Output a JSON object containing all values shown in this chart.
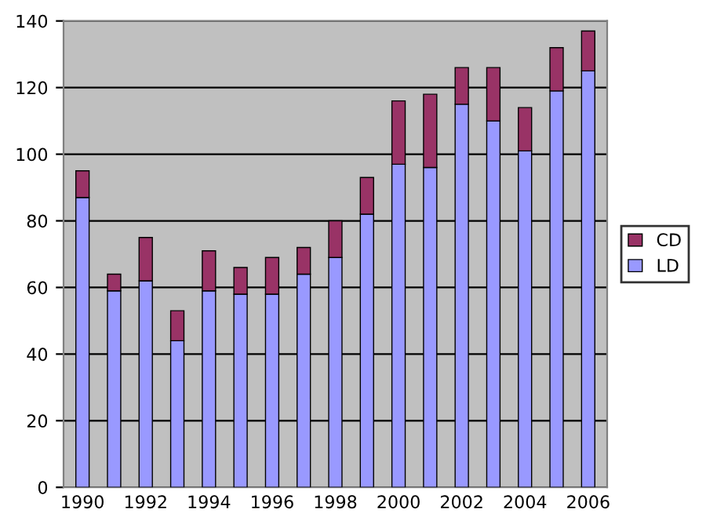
{
  "chart_data": {
    "type": "bar",
    "stacked": true,
    "categories": [
      "1990",
      null,
      "1992",
      null,
      "1994",
      null,
      "1996",
      null,
      "1998",
      null,
      "2000",
      null,
      "2002",
      null,
      "2004",
      null,
      "2006"
    ],
    "series": [
      {
        "name": "LD",
        "color": "#9999ff",
        "values": [
          87,
          59,
          62,
          44,
          59,
          58,
          58,
          64,
          69,
          82,
          97,
          96,
          115,
          110,
          101,
          119,
          125
        ]
      },
      {
        "name": "CD",
        "color": "#993366",
        "values": [
          8,
          5,
          13,
          9,
          12,
          8,
          11,
          8,
          11,
          11,
          19,
          22,
          11,
          16,
          13,
          13,
          12
        ]
      }
    ],
    "ylim": [
      0,
      140
    ],
    "yticks": [
      0,
      20,
      40,
      60,
      80,
      100,
      120,
      140
    ],
    "grid": "y",
    "legend": "right"
  }
}
